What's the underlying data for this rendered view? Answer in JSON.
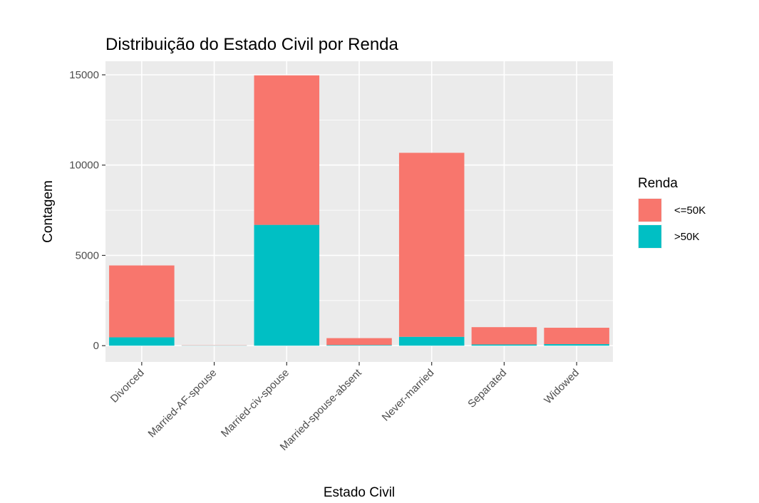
{
  "chart_data": {
    "type": "bar",
    "stacked": true,
    "title": "Distribuição do Estado Civil por Renda",
    "xlabel": "Estado Civil",
    "ylabel": "Contagem",
    "categories": [
      "Divorced",
      "Married-AF-spouse",
      "Married-civ-spouse",
      "Married-spouse-absent",
      "Never-married",
      "Separated",
      "Widowed"
    ],
    "series": [
      {
        "name": "<=50K",
        "color": "#F8766D",
        "values": [
          3980,
          13,
          8280,
          384,
          10190,
          960,
          908
        ]
      },
      {
        "name": ">50K",
        "color": "#00BFC4",
        "values": [
          463,
          10,
          6690,
          34,
          491,
          66,
          85
        ]
      }
    ],
    "ylim": [
      -900,
      15750
    ],
    "yticks": [
      0,
      5000,
      10000,
      15000
    ],
    "ytick_labels": [
      "0",
      "5000",
      "10000",
      "15000"
    ],
    "grid": true,
    "legend": {
      "title": "Renda",
      "position": "right"
    },
    "panel_color": "#EBEBEB",
    "grid_color": "#FFFFFF"
  }
}
